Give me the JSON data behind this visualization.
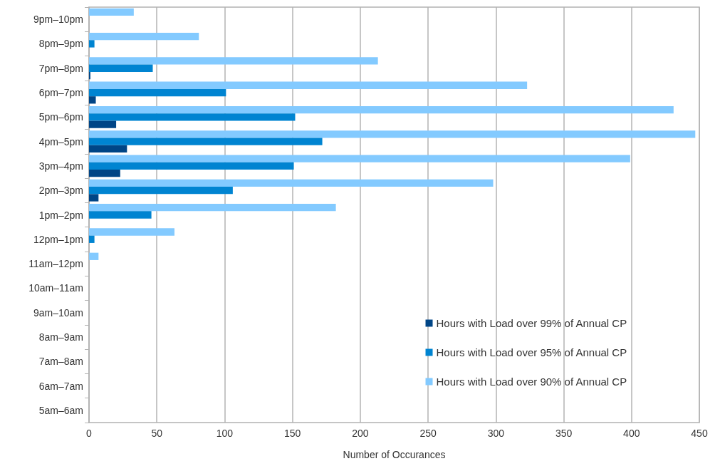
{
  "chart_data": {
    "type": "bar",
    "orientation": "horizontal",
    "xlabel": "Number of Occurances",
    "categories": [
      "9pm–10pm",
      "8pm–9pm",
      "7pm–8pm",
      "6pm–7pm",
      "5pm–6pm",
      "4pm–5pm",
      "3pm–4pm",
      "2pm–3pm",
      "1pm–2pm",
      "12pm–1pm",
      "11am–12pm",
      "10am–11am",
      "9am–10am",
      "8am–9am",
      "7am–8am",
      "6am–7am",
      "5am–6am"
    ],
    "series": [
      {
        "name": "Hours with Load over 99% of Annual CP",
        "color": "#004586",
        "values": [
          0,
          0,
          1,
          5,
          20,
          28,
          23,
          7,
          0,
          0,
          0,
          0,
          0,
          0,
          0,
          0,
          0
        ]
      },
      {
        "name": "Hours with Load over 95% of Annual CP",
        "color": "#0084d1",
        "values": [
          0,
          4,
          47,
          101,
          152,
          172,
          151,
          106,
          46,
          4,
          0,
          0,
          0,
          0,
          0,
          0,
          0
        ]
      },
      {
        "name": "Hours with Load over 90% of Annual CP",
        "color": "#83caff",
        "values": [
          33,
          81,
          213,
          323,
          431,
          447,
          399,
          298,
          182,
          63,
          7,
          0,
          0,
          0,
          0,
          0,
          0
        ]
      }
    ],
    "xlim": [
      0,
      450
    ],
    "xticks": [
      0,
      50,
      100,
      150,
      200,
      250,
      300,
      350,
      400,
      450
    ],
    "grid": "x",
    "legend": "bottom right"
  }
}
